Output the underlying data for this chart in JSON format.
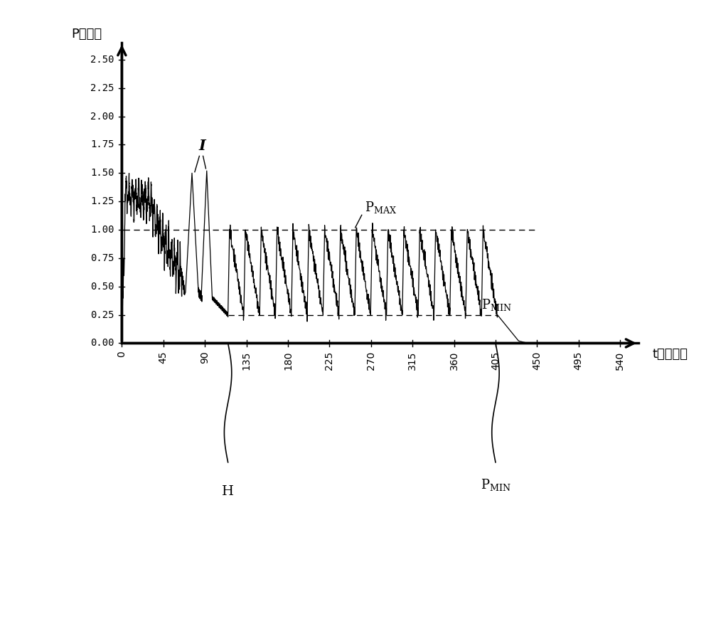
{
  "ylabel": "P（巴）",
  "xlabel": "t（分钟）",
  "ylim_plot": [
    -1.5,
    2.75
  ],
  "xlim_plot": [
    -55,
    600
  ],
  "yticks": [
    0.0,
    0.25,
    0.5,
    0.75,
    1.0,
    1.25,
    1.5,
    1.75,
    2.0,
    2.25,
    2.5
  ],
  "ytick_labels": [
    "0.00",
    "0.25",
    "0.50",
    "0.75",
    "1.00",
    "1.25",
    "1.50",
    "1.75",
    "2.00",
    "2.25",
    "2.50"
  ],
  "xticks": [
    0,
    45,
    90,
    135,
    180,
    225,
    270,
    315,
    360,
    405,
    450,
    495,
    540
  ],
  "p_max": 1.0,
  "p_min": 0.25,
  "bg_color": "#ffffff",
  "line_color": "#000000",
  "axis_x_end": 560,
  "axis_y_end": 2.65,
  "cycle_start": 115,
  "cycle_end": 407,
  "n_cycles": 17
}
